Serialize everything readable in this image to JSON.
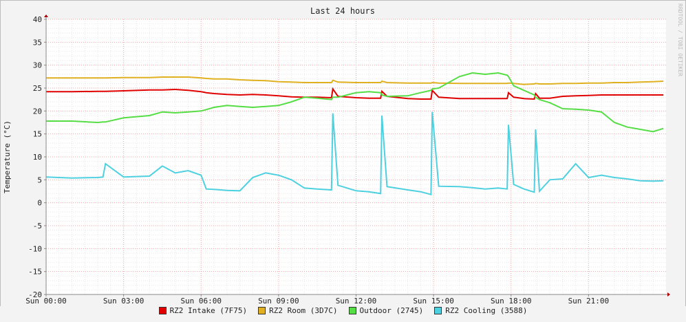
{
  "chart_data": {
    "type": "line",
    "title": "Last 24 hours",
    "y_label": "Temperature (°C)",
    "watermark": "RRDTOOL / TOBI OETIKER",
    "x": [
      0,
      1,
      2,
      2.2,
      2.3,
      3,
      4,
      4.5,
      5,
      5.5,
      6,
      6.2,
      6.5,
      7,
      7.5,
      8,
      8.5,
      9,
      9.5,
      10,
      10.5,
      11.05,
      11.1,
      11.3,
      12,
      12.5,
      12.95,
      13.0,
      13.2,
      14,
      14.5,
      14.9,
      14.95,
      15.2,
      16,
      16.5,
      17,
      17.5,
      17.85,
      17.9,
      18.1,
      18.5,
      18.9,
      18.95,
      19.1,
      19.5,
      20,
      20.5,
      21,
      21.5,
      22,
      22.5,
      23,
      23.5,
      23.9
    ],
    "series": [
      {
        "name": "RZ2 Intake (7F75)",
        "color": "#e00000",
        "values": [
          24.2,
          24.2,
          24.3,
          24.3,
          24.3,
          24.4,
          24.6,
          24.6,
          24.7,
          24.5,
          24.2,
          24,
          23.8,
          23.6,
          23.5,
          23.6,
          23.5,
          23.3,
          23.1,
          23,
          23,
          22.9,
          24.8,
          23.2,
          22.9,
          22.8,
          22.8,
          24.3,
          23.2,
          22.7,
          22.6,
          22.6,
          24.5,
          23,
          22.7,
          22.7,
          22.7,
          22.7,
          22.7,
          24,
          23,
          22.7,
          22.6,
          23.8,
          22.8,
          22.8,
          23.2,
          23.3,
          23.4,
          23.5,
          23.5,
          23.5,
          23.5,
          23.5,
          23.5
        ]
      },
      {
        "name": "RZ2 Room (3D7C)",
        "color": "#e0b020",
        "values": [
          27.2,
          27.2,
          27.2,
          27.2,
          27.2,
          27.3,
          27.3,
          27.4,
          27.4,
          27.4,
          27.2,
          27.1,
          27,
          27,
          26.8,
          26.7,
          26.6,
          26.4,
          26.3,
          26.2,
          26.2,
          26.2,
          26.7,
          26.3,
          26.2,
          26.2,
          26.2,
          26.5,
          26.2,
          26.1,
          26.1,
          26.1,
          26.2,
          26.1,
          26,
          26,
          26,
          26,
          26,
          26.1,
          26,
          25.8,
          25.9,
          26,
          25.9,
          25.9,
          26,
          26,
          26.1,
          26.1,
          26.2,
          26.2,
          26.3,
          26.4,
          26.5
        ]
      },
      {
        "name": "Outdoor (2745)",
        "color": "#55dd44",
        "values": [
          17.8,
          17.8,
          17.5,
          17.6,
          17.6,
          18.5,
          19,
          19.8,
          19.6,
          19.8,
          20,
          20.3,
          20.8,
          21.2,
          21,
          20.8,
          21,
          21.2,
          22,
          23,
          22.8,
          22.5,
          23,
          23,
          24,
          24.2,
          24,
          23.5,
          23.2,
          23.3,
          24,
          24.5,
          24.8,
          25,
          27.5,
          28.3,
          28,
          28.3,
          27.8,
          27.5,
          25.5,
          24.5,
          23.5,
          23,
          22.5,
          21.8,
          20.5,
          20.4,
          20.2,
          19.8,
          17.5,
          16.5,
          16,
          15.5,
          16.2
        ]
      },
      {
        "name": "RZ2 Cooling (3588)",
        "color": "#4dd0e0",
        "values": [
          5.6,
          5.4,
          5.5,
          5.6,
          8.5,
          5.6,
          5.8,
          8,
          6.5,
          7,
          6,
          3,
          2.9,
          2.7,
          2.6,
          5.5,
          6.5,
          6,
          5,
          3.2,
          3,
          2.8,
          19.5,
          3.8,
          2.6,
          2.4,
          2,
          19,
          3.5,
          2.8,
          2.4,
          1.8,
          19.8,
          3.6,
          3.5,
          3.3,
          3,
          3.2,
          3,
          17,
          4,
          3,
          2.3,
          16,
          2.5,
          5,
          5.2,
          8.5,
          5.5,
          6,
          5.5,
          5.2,
          4.8,
          4.7,
          4.8
        ]
      }
    ],
    "xlim": [
      0,
      24
    ],
    "xticks": [
      {
        "value": 0,
        "label": "Sun 00:00"
      },
      {
        "value": 3,
        "label": "Sun 03:00"
      },
      {
        "value": 6,
        "label": "Sun 06:00"
      },
      {
        "value": 9,
        "label": "Sun 09:00"
      },
      {
        "value": 12,
        "label": "Sun 12:00"
      },
      {
        "value": 15,
        "label": "Sun 15:00"
      },
      {
        "value": 18,
        "label": "Sun 18:00"
      },
      {
        "value": 21,
        "label": "Sun 21:00"
      }
    ],
    "ylim": [
      -20,
      40
    ],
    "yticks": [
      -20,
      -15,
      -10,
      -5,
      0,
      5,
      10,
      15,
      20,
      25,
      30,
      35,
      40
    ],
    "grid": true
  }
}
